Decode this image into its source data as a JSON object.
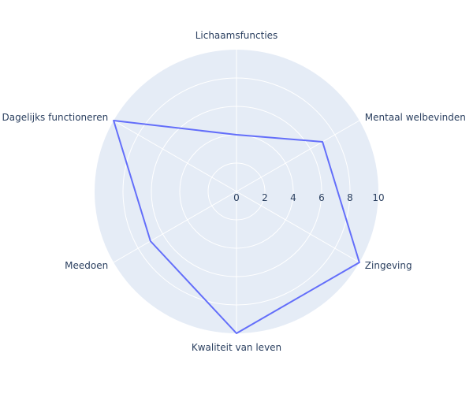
{
  "chart_data": {
    "type": "radar",
    "axes": [
      "Lichaamsfuncties",
      "Mentaal welbevinden",
      "Zingeving",
      "Kwaliteit van leven",
      "Meedoen",
      "Dagelijks functioneren"
    ],
    "series": [
      {
        "values": [
          4,
          7,
          10,
          10,
          7,
          10
        ]
      }
    ],
    "radial_range": [
      0,
      10
    ],
    "radial_ticks": [
      "0",
      "2",
      "4",
      "6",
      "8",
      "10"
    ],
    "grid": true,
    "colors": {
      "plot_background": "#e5ecf6",
      "grid": "#ffffff",
      "line": "#636efa"
    }
  }
}
